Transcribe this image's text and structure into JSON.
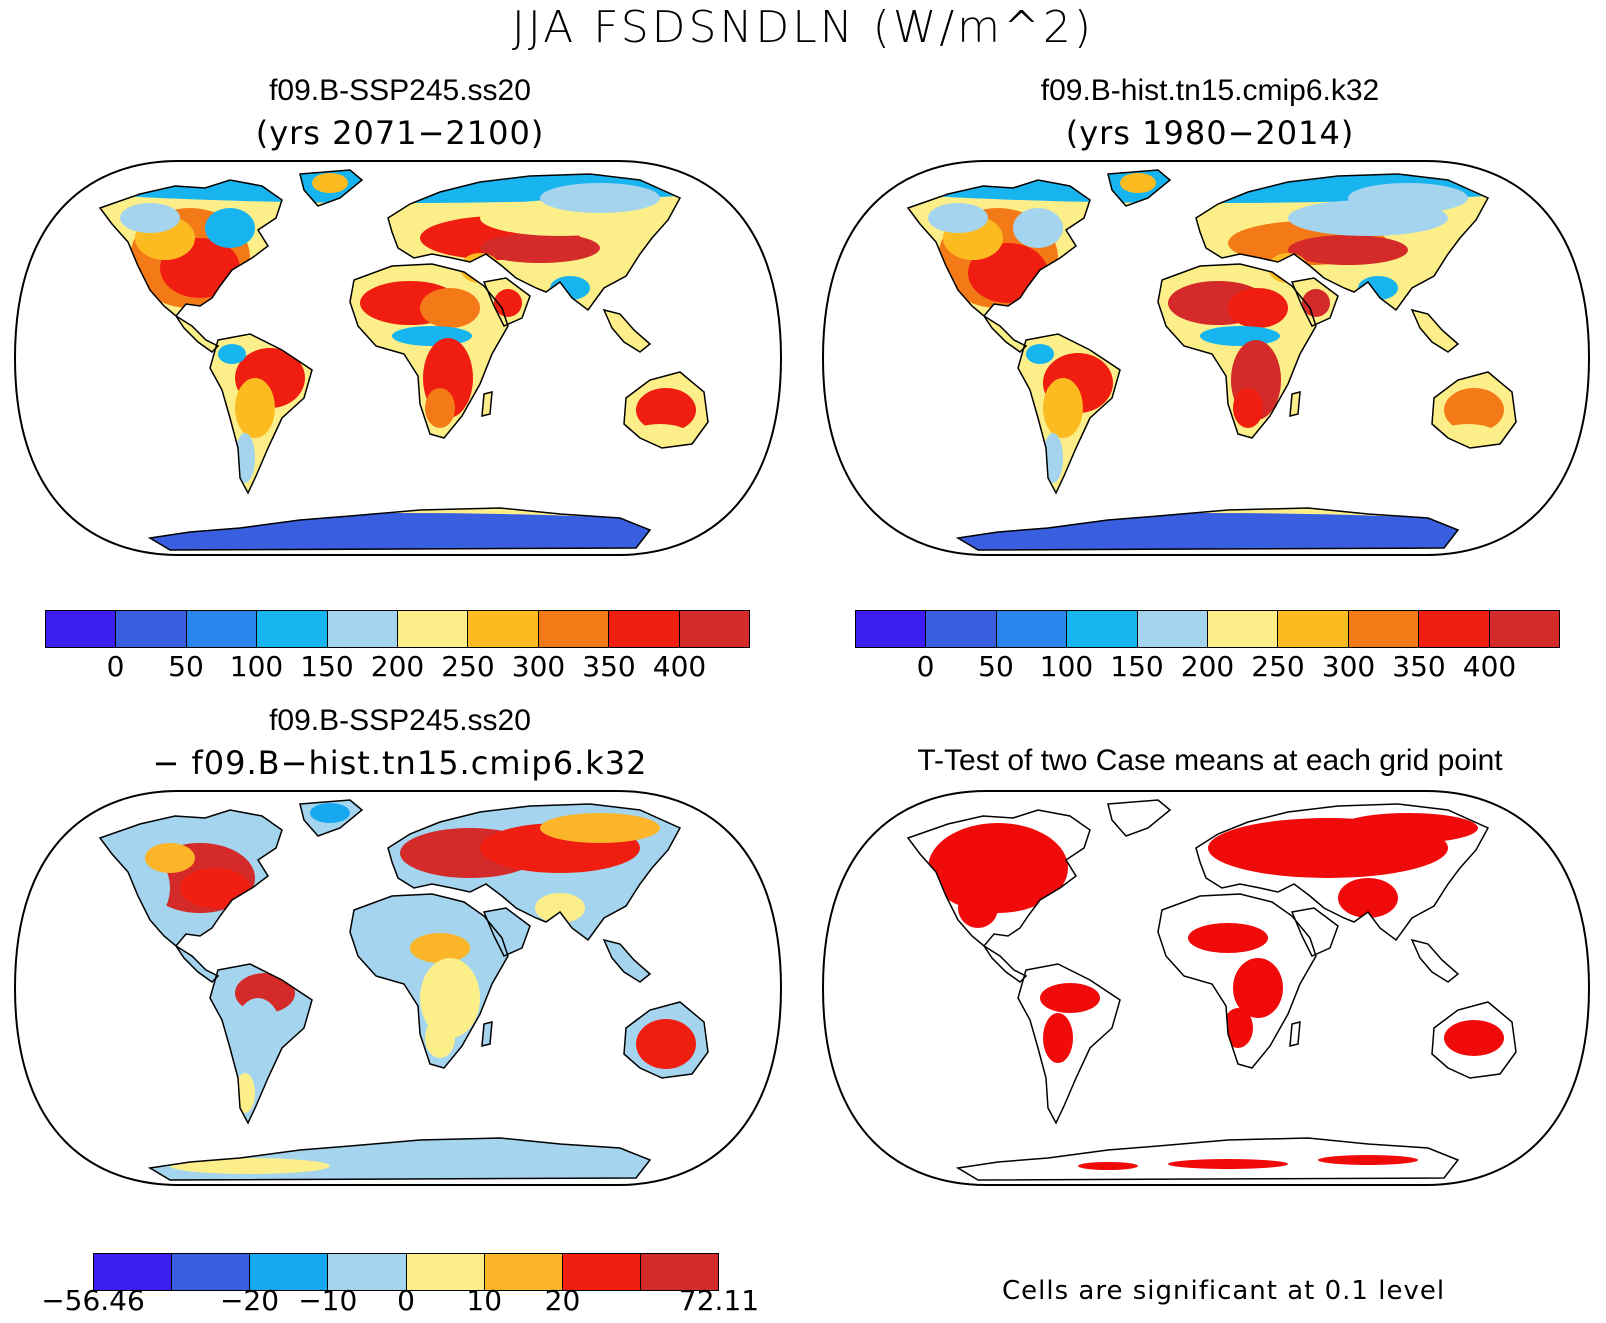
{
  "title": "JJA FSDSNDLN (W/m^2)",
  "colors": {
    "levels": [
      "#3d1ef0",
      "#3a5ee0",
      "#2a86ee",
      "#18b4f0",
      "#a4d4ee",
      "#fcef8a",
      "#fcbb20",
      "#f47a18",
      "#f01e10",
      "#d42a2a"
    ],
    "diff_levels": [
      "#3d1ef0",
      "#3a5ee0",
      "#18a8f0",
      "#a4d4ee",
      "#fcef8a",
      "#fcb428",
      "#f01e10",
      "#d42a2a"
    ],
    "significant": "#f00a0a",
    "coast": "#000000"
  },
  "panels": [
    {
      "id": "ssp245",
      "title": "f09.B-SSP245.ss20",
      "subtitle": "(yrs 2071−2100)",
      "colorbar_labels": [
        "0",
        "50",
        "100",
        "150",
        "200",
        "250",
        "300",
        "350",
        "400"
      ]
    },
    {
      "id": "hist",
      "title": "f09.B-hist.tn15.cmip6.k32",
      "subtitle": "(yrs 1980−2014)",
      "colorbar_labels": [
        "0",
        "50",
        "100",
        "150",
        "200",
        "250",
        "300",
        "350",
        "400"
      ]
    },
    {
      "id": "diff",
      "title": "f09.B-SSP245.ss20",
      "subtitle": "− f09.B−hist.tn15.cmip6.k32",
      "colorbar_labels": [
        "−56.46",
        "−20",
        "−10",
        "0",
        "10",
        "20",
        "72.11"
      ]
    },
    {
      "id": "ttest",
      "title": "T-Test of two Case means at each grid point",
      "note": "Cells are significant at 0.1 level"
    }
  ]
}
